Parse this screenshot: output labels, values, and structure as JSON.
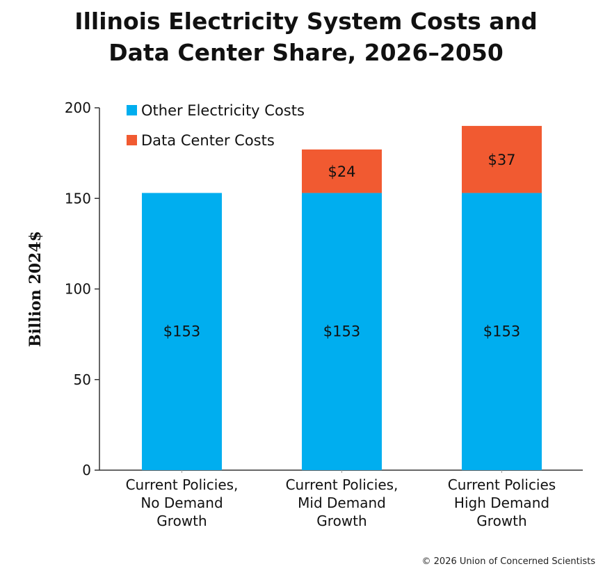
{
  "chart_data": {
    "type": "bar",
    "stacked": true,
    "title": "Illinois Electricity System Costs and Data Center Share, 2026–2050",
    "title_lines": [
      "Illinois Electricity System Costs and",
      "Data Center Share, 2026–2050"
    ],
    "xlabel": "",
    "ylabel": "Billion 2024$",
    "ylim": [
      0,
      200
    ],
    "yticks": [
      0,
      50,
      100,
      150,
      200
    ],
    "grid": false,
    "legend_placement": "top-left",
    "categories": [
      [
        "Current Policies,",
        "No Demand",
        "Growth"
      ],
      [
        "Current Policies,",
        "Mid Demand",
        "Growth"
      ],
      [
        "Current Policies",
        "High Demand",
        "Growth"
      ]
    ],
    "series": [
      {
        "name": "Other Electricity Costs",
        "color": "#00AEEF",
        "values": [
          153,
          153,
          153
        ],
        "labels": [
          "$153",
          "$153",
          "$153"
        ]
      },
      {
        "name": "Data Center Costs",
        "color": "#F15A31",
        "values": [
          0,
          24,
          37
        ],
        "labels": [
          "",
          "$24",
          "$37"
        ]
      }
    ]
  },
  "credit": "© 2026 Union of Concerned Scientists"
}
